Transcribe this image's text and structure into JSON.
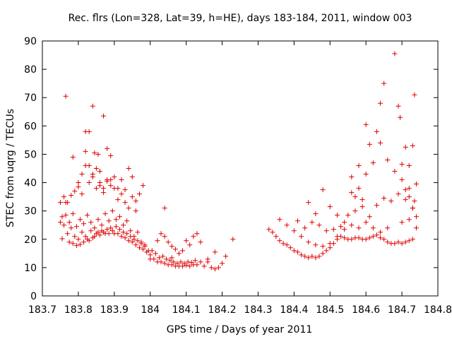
{
  "chart_data": {
    "type": "scatter",
    "title": "Rec. flrs (Lon=328, Lat=39, h=HE), days 183-184, 2011, window 003",
    "xlabel": "GPS time / Days of year 2011",
    "ylabel": "STEC from uqrg / TECUs",
    "xlim": [
      183.7,
      184.8
    ],
    "ylim": [
      0,
      90
    ],
    "xticks": [
      183.7,
      183.8,
      183.9,
      184,
      184.1,
      184.2,
      184.3,
      184.4,
      184.5,
      184.6,
      184.7,
      184.8
    ],
    "xtick_labels": [
      "183.7",
      "183.8",
      "183.9",
      "184",
      "184.1",
      "184.2",
      "184.3",
      "184.4",
      "184.5",
      "184.6",
      "184.7",
      "184.8"
    ],
    "yticks": [
      0,
      10,
      20,
      30,
      40,
      50,
      60,
      70,
      80,
      90
    ],
    "ytick_labels": [
      "0",
      "10",
      "20",
      "30",
      "40",
      "50",
      "60",
      "70",
      "80",
      "90"
    ],
    "grid": false,
    "marker": "+",
    "color": "#dd0000",
    "series": [
      {
        "points": [
          [
            183.755,
            20.2
          ],
          [
            183.76,
            25.0
          ],
          [
            183.765,
            28.5
          ],
          [
            183.77,
            22.0
          ],
          [
            183.775,
            19.0
          ],
          [
            183.78,
            24.0
          ],
          [
            183.785,
            18.5
          ],
          [
            183.79,
            21.0
          ],
          [
            183.795,
            17.8
          ],
          [
            183.8,
            20.0
          ],
          [
            183.805,
            18.2
          ],
          [
            183.81,
            22.5
          ],
          [
            183.815,
            19.0
          ],
          [
            183.82,
            21.0
          ],
          [
            183.825,
            20.0
          ],
          [
            183.83,
            19.5
          ],
          [
            183.835,
            23.0
          ],
          [
            183.84,
            20.5
          ],
          [
            183.845,
            21.0
          ],
          [
            183.85,
            22.0
          ],
          [
            183.855,
            22.5
          ],
          [
            183.86,
            21.5
          ],
          [
            183.865,
            23.0
          ],
          [
            183.87,
            22.5
          ],
          [
            183.875,
            22.0
          ],
          [
            183.88,
            23.5
          ],
          [
            183.885,
            22.0
          ],
          [
            183.89,
            24.0
          ],
          [
            183.895,
            23.0
          ],
          [
            183.9,
            22.0
          ],
          [
            183.905,
            24.5
          ],
          [
            183.91,
            22.0
          ],
          [
            183.915,
            23.5
          ],
          [
            183.92,
            21.0
          ],
          [
            183.925,
            22.5
          ],
          [
            183.93,
            20.5
          ],
          [
            183.935,
            22.0
          ],
          [
            183.94,
            19.5
          ],
          [
            183.945,
            21.0
          ],
          [
            183.95,
            19.0
          ],
          [
            183.955,
            20.0
          ],
          [
            183.96,
            18.0
          ],
          [
            183.965,
            19.5
          ],
          [
            183.97,
            17.0
          ],
          [
            183.975,
            18.5
          ],
          [
            183.98,
            16.5
          ],
          [
            183.985,
            17.5
          ],
          [
            183.99,
            15.5
          ],
          [
            183.995,
            16.0
          ],
          [
            184.0,
            14.5
          ],
          [
            184.01,
            13.0
          ],
          [
            184.015,
            15.0
          ],
          [
            184.02,
            12.0
          ],
          [
            184.025,
            13.5
          ],
          [
            184.03,
            12.0
          ],
          [
            184.035,
            14.0
          ],
          [
            184.04,
            11.5
          ],
          [
            184.045,
            13.0
          ],
          [
            184.05,
            11.0
          ],
          [
            184.055,
            12.5
          ],
          [
            184.06,
            11.0
          ],
          [
            184.065,
            12.0
          ],
          [
            184.07,
            10.5
          ],
          [
            184.075,
            11.5
          ],
          [
            184.08,
            10.5
          ],
          [
            184.085,
            12.0
          ],
          [
            184.09,
            10.5
          ],
          [
            184.095,
            11.5
          ],
          [
            184.1,
            10.8
          ],
          [
            184.105,
            12.0
          ],
          [
            184.11,
            10.5
          ],
          [
            184.115,
            11.8
          ],
          [
            184.12,
            11.0
          ],
          [
            184.125,
            12.5
          ],
          [
            184.13,
            11.0
          ],
          [
            184.14,
            12.0
          ],
          [
            184.15,
            10.5
          ],
          [
            184.16,
            12.0
          ],
          [
            184.17,
            10.0
          ],
          [
            184.18,
            9.5
          ],
          [
            184.19,
            10.0
          ],
          [
            184.2,
            11.5
          ],
          [
            184.21,
            14.0
          ],
          [
            184.23,
            20.0
          ],
          [
            183.755,
            28.0
          ],
          [
            183.765,
            33.0
          ],
          [
            183.775,
            26.0
          ],
          [
            183.785,
            29.0
          ],
          [
            183.795,
            24.5
          ],
          [
            183.805,
            27.0
          ],
          [
            183.815,
            25.5
          ],
          [
            183.825,
            28.5
          ],
          [
            183.835,
            26.0
          ],
          [
            183.845,
            24.0
          ],
          [
            183.855,
            27.0
          ],
          [
            183.865,
            25.0
          ],
          [
            183.875,
            29.0
          ],
          [
            183.885,
            26.5
          ],
          [
            183.895,
            30.0
          ],
          [
            183.905,
            27.0
          ],
          [
            183.915,
            28.0
          ],
          [
            183.925,
            25.0
          ],
          [
            183.935,
            26.5
          ],
          [
            183.945,
            23.0
          ],
          [
            183.955,
            21.0
          ],
          [
            183.965,
            22.5
          ],
          [
            183.975,
            19.0
          ],
          [
            183.985,
            18.0
          ],
          [
            184.005,
            16.0
          ],
          [
            184.02,
            19.5
          ],
          [
            184.03,
            22.0
          ],
          [
            184.04,
            21.0
          ],
          [
            184.05,
            19.0
          ],
          [
            184.06,
            17.5
          ],
          [
            184.07,
            16.5
          ],
          [
            184.08,
            15.0
          ],
          [
            184.09,
            16.0
          ],
          [
            184.1,
            19.5
          ],
          [
            184.11,
            18.0
          ],
          [
            184.12,
            21.0
          ],
          [
            184.13,
            22.0
          ],
          [
            184.14,
            19.0
          ],
          [
            184.16,
            13.0
          ],
          [
            184.18,
            15.5
          ],
          [
            183.75,
            33.0
          ],
          [
            183.75,
            26.0
          ],
          [
            183.76,
            35.0
          ],
          [
            183.77,
            33.0
          ],
          [
            183.78,
            35.5
          ],
          [
            183.79,
            37.0
          ],
          [
            183.8,
            38.5
          ],
          [
            183.81,
            36.0
          ],
          [
            183.82,
            46.0
          ],
          [
            183.83,
            40.0
          ],
          [
            183.84,
            42.0
          ],
          [
            183.85,
            45.0
          ],
          [
            183.86,
            40.0
          ],
          [
            183.87,
            38.0
          ],
          [
            183.88,
            41.0
          ],
          [
            183.89,
            39.0
          ],
          [
            183.9,
            38.0
          ],
          [
            183.91,
            34.0
          ],
          [
            183.92,
            36.0
          ],
          [
            183.93,
            33.0
          ],
          [
            183.94,
            31.0
          ],
          [
            183.95,
            35.0
          ],
          [
            183.96,
            33.5
          ],
          [
            183.97,
            36.0
          ],
          [
            183.98,
            39.0
          ],
          [
            184.0,
            13.0
          ],
          [
            184.06,
            13.5
          ],
          [
            183.765,
            70.5
          ],
          [
            183.785,
            49.0
          ],
          [
            183.8,
            40.0
          ],
          [
            183.81,
            43.0
          ],
          [
            183.82,
            58.0
          ],
          [
            183.83,
            58.0
          ],
          [
            183.84,
            67.0
          ],
          [
            183.845,
            50.5
          ],
          [
            183.855,
            50.0
          ],
          [
            183.86,
            44.0
          ],
          [
            183.87,
            63.5
          ],
          [
            183.88,
            52.0
          ],
          [
            183.89,
            49.5
          ],
          [
            183.9,
            42.0
          ],
          [
            183.92,
            41.0
          ],
          [
            183.94,
            45.0
          ],
          [
            183.95,
            42.0
          ],
          [
            183.82,
            51.0
          ],
          [
            183.83,
            46.0
          ],
          [
            183.84,
            43.0
          ],
          [
            183.85,
            38.0
          ],
          [
            183.86,
            39.0
          ],
          [
            183.87,
            36.5
          ],
          [
            183.88,
            40.5
          ],
          [
            183.89,
            41.0
          ],
          [
            183.91,
            38.0
          ],
          [
            183.93,
            37.5
          ],
          [
            183.96,
            30.0
          ],
          [
            184.04,
            31.0
          ],
          [
            184.33,
            23.5
          ],
          [
            184.34,
            22.5
          ],
          [
            184.35,
            21.0
          ],
          [
            184.36,
            19.5
          ],
          [
            184.37,
            18.5
          ],
          [
            184.38,
            18.0
          ],
          [
            184.39,
            17.0
          ],
          [
            184.4,
            16.0
          ],
          [
            184.41,
            15.5
          ],
          [
            184.42,
            14.5
          ],
          [
            184.43,
            14.0
          ],
          [
            184.44,
            13.5
          ],
          [
            184.45,
            14.0
          ],
          [
            184.46,
            13.5
          ],
          [
            184.47,
            14.0
          ],
          [
            184.48,
            15.0
          ],
          [
            184.49,
            16.0
          ],
          [
            184.5,
            17.0
          ],
          [
            184.51,
            18.5
          ],
          [
            184.52,
            20.0
          ],
          [
            184.53,
            21.0
          ],
          [
            184.54,
            20.5
          ],
          [
            184.55,
            20.0
          ],
          [
            184.56,
            20.0
          ],
          [
            184.57,
            20.5
          ],
          [
            184.58,
            20.5
          ],
          [
            184.59,
            20.0
          ],
          [
            184.6,
            20.0
          ],
          [
            184.61,
            20.5
          ],
          [
            184.62,
            21.0
          ],
          [
            184.63,
            21.5
          ],
          [
            184.64,
            20.5
          ],
          [
            184.65,
            20.0
          ],
          [
            184.66,
            19.0
          ],
          [
            184.67,
            18.5
          ],
          [
            184.68,
            18.5
          ],
          [
            184.69,
            19.0
          ],
          [
            184.7,
            18.5
          ],
          [
            184.71,
            19.0
          ],
          [
            184.72,
            19.5
          ],
          [
            184.73,
            20.0
          ],
          [
            184.36,
            27.0
          ],
          [
            184.38,
            25.0
          ],
          [
            184.4,
            23.0
          ],
          [
            184.42,
            21.0
          ],
          [
            184.44,
            19.0
          ],
          [
            184.46,
            18.0
          ],
          [
            184.48,
            17.5
          ],
          [
            184.5,
            18.5
          ],
          [
            184.52,
            21.0
          ],
          [
            184.54,
            23.5
          ],
          [
            184.56,
            25.0
          ],
          [
            184.58,
            24.0
          ],
          [
            184.6,
            26.0
          ],
          [
            184.62,
            24.0
          ],
          [
            184.64,
            22.5
          ],
          [
            184.66,
            24.0
          ],
          [
            184.7,
            26.0
          ],
          [
            184.72,
            27.0
          ],
          [
            184.41,
            26.5
          ],
          [
            184.43,
            24.0
          ],
          [
            184.45,
            26.0
          ],
          [
            184.47,
            25.0
          ],
          [
            184.49,
            23.0
          ],
          [
            184.51,
            23.5
          ],
          [
            184.53,
            24.5
          ],
          [
            184.55,
            28.5
          ],
          [
            184.57,
            30.0
          ],
          [
            184.59,
            31.5
          ],
          [
            184.61,
            28.0
          ],
          [
            184.63,
            32.0
          ],
          [
            184.65,
            34.5
          ],
          [
            184.67,
            33.5
          ],
          [
            184.69,
            36.0
          ],
          [
            184.71,
            34.0
          ],
          [
            184.73,
            31.0
          ],
          [
            184.44,
            33.0
          ],
          [
            184.46,
            29.0
          ],
          [
            184.48,
            37.5
          ],
          [
            184.5,
            31.5
          ],
          [
            184.52,
            28.5
          ],
          [
            184.54,
            26.0
          ],
          [
            184.56,
            36.5
          ],
          [
            184.58,
            46.0
          ],
          [
            184.6,
            43.0
          ],
          [
            184.62,
            47.0
          ],
          [
            184.64,
            54.0
          ],
          [
            184.66,
            48.0
          ],
          [
            184.68,
            44.0
          ],
          [
            184.7,
            46.5
          ],
          [
            184.72,
            38.0
          ],
          [
            184.74,
            39.5
          ],
          [
            184.56,
            42.0
          ],
          [
            184.58,
            38.0
          ],
          [
            184.6,
            60.5
          ],
          [
            184.61,
            53.5
          ],
          [
            184.63,
            58.0
          ],
          [
            184.64,
            68.0
          ],
          [
            184.65,
            75.0
          ],
          [
            184.68,
            85.5
          ],
          [
            184.69,
            67.0
          ],
          [
            184.695,
            63.0
          ],
          [
            184.71,
            52.5
          ],
          [
            184.72,
            46.0
          ],
          [
            184.73,
            53.0
          ],
          [
            184.735,
            71.0
          ],
          [
            184.7,
            41.0
          ],
          [
            184.71,
            37.5
          ],
          [
            184.72,
            35.0
          ],
          [
            184.73,
            31.0
          ],
          [
            184.74,
            28.0
          ],
          [
            184.74,
            24.0
          ],
          [
            184.735,
            33.5
          ],
          [
            184.59,
            34.0
          ],
          [
            184.57,
            35.0
          ]
        ]
      }
    ]
  }
}
